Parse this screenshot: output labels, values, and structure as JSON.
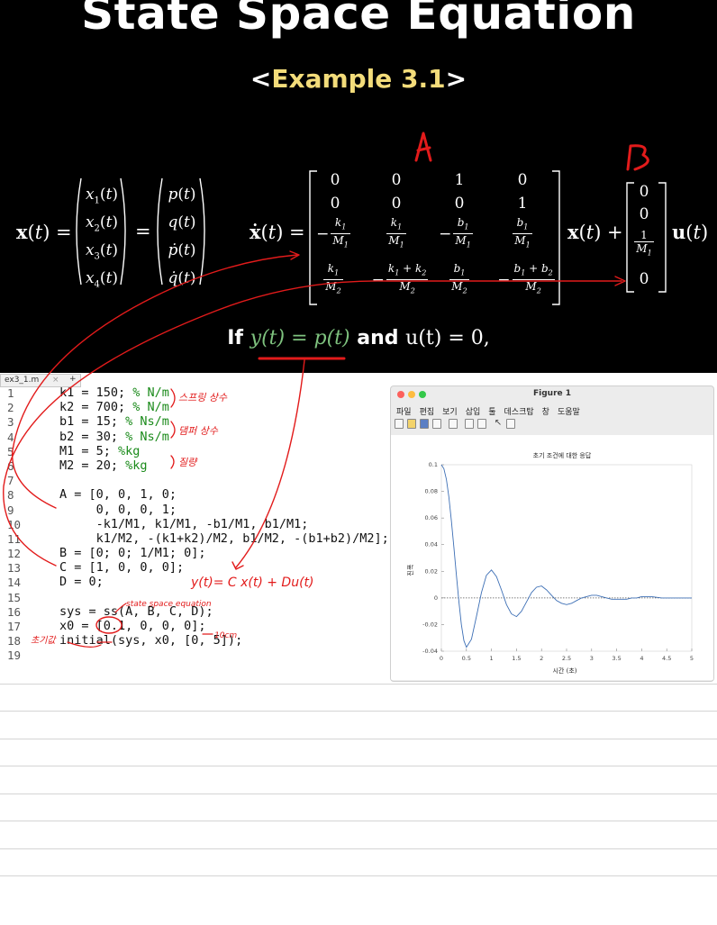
{
  "slide": {
    "title": "State Space Equation",
    "subtitle_open": "<",
    "subtitle_text": "Example 3.1",
    "subtitle_close": ">",
    "condition_if": "If ",
    "condition_eq": "y(t) = p(t)",
    "condition_and": " and ",
    "condition_u": "u(t) = 0,"
  },
  "annotations": {
    "label_a": "A",
    "label_b": "B",
    "spring_note": "스프링 상수",
    "damper_note": "댐퍼 상수",
    "mass_note": "질량",
    "output_note": "y(t)= C x(t) + Du(t)",
    "ss_note": "state space equation",
    "initial_note": "초기값",
    "cm_note": "10cm"
  },
  "editor": {
    "tab_label": "ex3_1.m",
    "tab_close": "×",
    "tab_add": "+",
    "lines": [
      {
        "n": "1",
        "code": "k1 = 150; ",
        "comment": "% N/m"
      },
      {
        "n": "2",
        "code": "k2 = 700; ",
        "comment": "% N/m"
      },
      {
        "n": "3",
        "code": "b1 = 15; ",
        "comment": "% Ns/m"
      },
      {
        "n": "4",
        "code": "b2 = 30; ",
        "comment": "% Ns/m"
      },
      {
        "n": "5",
        "code": "M1 = 5; ",
        "comment": "%kg"
      },
      {
        "n": "6",
        "code": "M2 = 20; ",
        "comment": "%kg"
      },
      {
        "n": "7",
        "code": "",
        "comment": ""
      },
      {
        "n": "8",
        "code": "A = [0, 0, 1, 0;",
        "comment": ""
      },
      {
        "n": "9",
        "code": "     0, 0, 0, 1;",
        "comment": ""
      },
      {
        "n": "10",
        "code": "     -k1/M1, k1/M1, -b1/M1, b1/M1;",
        "comment": ""
      },
      {
        "n": "11",
        "code": "     k1/M2, -(k1+k2)/M2, b1/M2, -(b1+b2)/M2];",
        "comment": ""
      },
      {
        "n": "12",
        "code": "B = [0; 0; 1/M1; 0];",
        "comment": ""
      },
      {
        "n": "13",
        "code": "C = [1, 0, 0, 0];",
        "comment": ""
      },
      {
        "n": "14",
        "code": "D = 0;",
        "comment": ""
      },
      {
        "n": "15",
        "code": "",
        "comment": ""
      },
      {
        "n": "16",
        "code": "sys = ss(A, B, C, D);",
        "comment": ""
      },
      {
        "n": "17",
        "code": "x0 = [0.1, 0, 0, 0];",
        "comment": ""
      },
      {
        "n": "18",
        "code": "initial(sys, x0, [0, 5]);",
        "comment": ""
      },
      {
        "n": "19",
        "code": "",
        "comment": ""
      }
    ]
  },
  "figure": {
    "window_title": "Figure 1",
    "menu": [
      "파일",
      "편집",
      "보기",
      "삽입",
      "툴",
      "데스크탑",
      "창",
      "도움말"
    ],
    "colors": {
      "close": "#fc605c",
      "minimize": "#fdbc40",
      "zoom": "#34c84a",
      "curve": "#3d6fb5"
    }
  },
  "chart_data": {
    "type": "line",
    "title": "초기 조건에 대한 응답",
    "xlabel": "시간 (초)",
    "ylabel": "진폭",
    "xlim": [
      0,
      5
    ],
    "ylim": [
      -0.04,
      0.1
    ],
    "x_ticks": [
      "0",
      "0.5",
      "1",
      "1.5",
      "2",
      "2.5",
      "3",
      "3.5",
      "4",
      "4.5",
      "5"
    ],
    "y_ticks": [
      "-0.04",
      "-0.02",
      "0",
      "0.02",
      "0.04",
      "0.06",
      "0.08",
      "0.1"
    ],
    "grid": false,
    "zero_line": true,
    "series": [
      {
        "x": [
          0,
          0.05,
          0.1,
          0.15,
          0.2,
          0.25,
          0.3,
          0.35,
          0.4,
          0.45,
          0.5,
          0.6,
          0.7,
          0.8,
          0.9,
          1.0,
          1.1,
          1.2,
          1.3,
          1.4,
          1.5,
          1.6,
          1.7,
          1.8,
          1.9,
          2.0,
          2.1,
          2.2,
          2.3,
          2.4,
          2.5,
          2.6,
          2.7,
          2.8,
          2.9,
          3.0,
          3.1,
          3.2,
          3.3,
          3.4,
          3.5,
          3.6,
          3.7,
          3.8,
          3.9,
          4.0,
          4.2,
          4.4,
          4.6,
          4.8,
          5.0
        ],
        "y": [
          0.1,
          0.097,
          0.089,
          0.076,
          0.058,
          0.038,
          0.017,
          -0.003,
          -0.02,
          -0.032,
          -0.037,
          -0.031,
          -0.014,
          0.004,
          0.017,
          0.021,
          0.016,
          0.006,
          -0.005,
          -0.012,
          -0.014,
          -0.01,
          -0.003,
          0.004,
          0.008,
          0.009,
          0.006,
          0.002,
          -0.002,
          -0.004,
          -0.005,
          -0.004,
          -0.002,
          0.0,
          0.001,
          0.002,
          0.002,
          0.001,
          0.0,
          -0.001,
          -0.001,
          -0.001,
          -0.001,
          0.0,
          0.0,
          0.001,
          0.001,
          0.0,
          0.0,
          0.0,
          0.0
        ]
      }
    ]
  }
}
